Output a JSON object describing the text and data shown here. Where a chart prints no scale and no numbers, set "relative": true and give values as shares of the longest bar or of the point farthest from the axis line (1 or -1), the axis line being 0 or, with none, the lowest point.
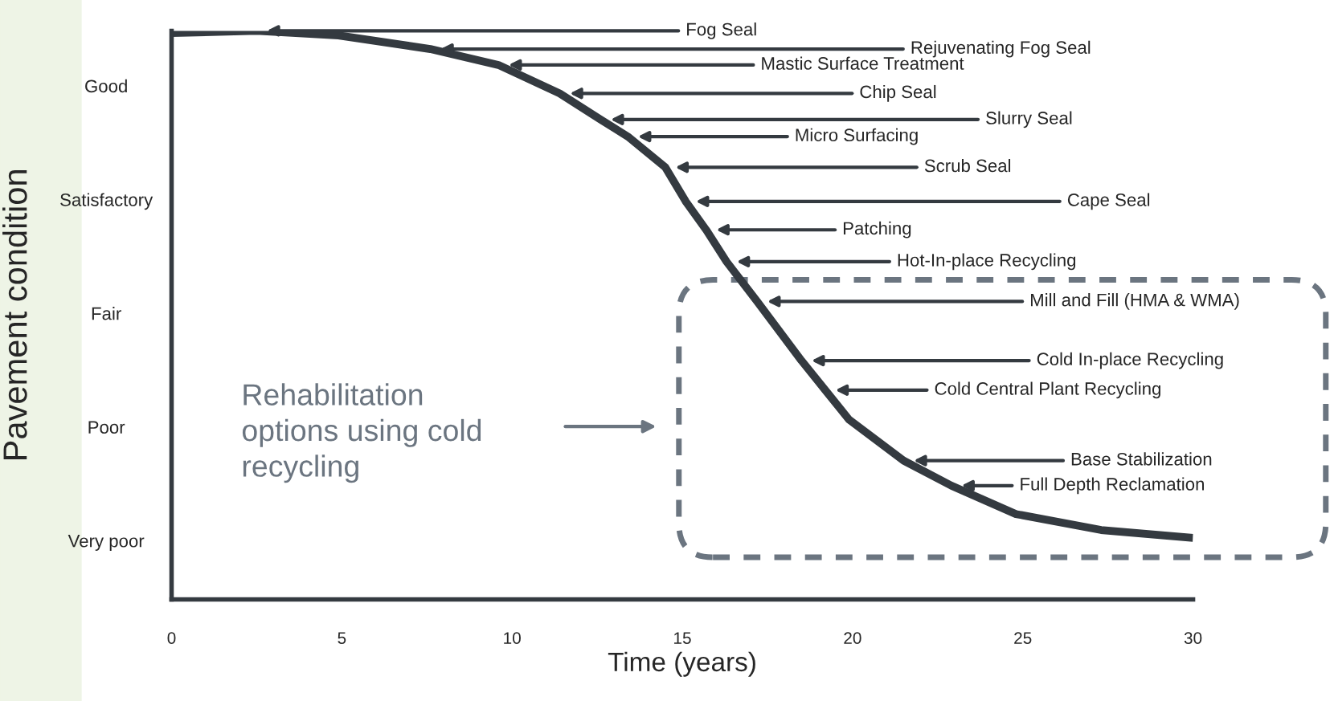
{
  "chart_data": {
    "type": "line",
    "xlabel": "Time (years)",
    "ylabel": "Pavement condition",
    "relative": true,
    "x": [
      0,
      2.5,
      4.9,
      7.6,
      9.6,
      11.4,
      12.6,
      13.4,
      14.5,
      15.1,
      15.7,
      16.3,
      17.2,
      18.5,
      19.2,
      19.9,
      21.5,
      22.9,
      24.8,
      27.3,
      30
    ],
    "series": [
      {
        "color": "#343a40",
        "values": [
          0.996,
          1,
          0.992,
          0.968,
          0.94,
          0.89,
          0.844,
          0.814,
          0.76,
          0.7,
          0.65,
          0.594,
          0.524,
          0.42,
          0.368,
          0.316,
          0.244,
          0.2,
          0.15,
          0.122,
          0.108
        ]
      }
    ],
    "xlim": [
      0,
      30
    ],
    "xticks": [
      0,
      5,
      10,
      15,
      20,
      25,
      30
    ],
    "grid": false,
    "annotations": [
      "Good",
      "Satisfactory",
      "Fair",
      "Poor",
      "Very poor",
      "Fog Seal",
      "Rejuvenating Fog Seal",
      "Mastic Surface Treatment",
      "Chip Seal",
      "Slurry Seal",
      "Micro Surfacing",
      "Scrub Seal",
      "Cape Seal",
      "Patching",
      "Hot-In-place Recycling",
      "Mill and Fill (HMA & WMA)",
      "Cold In-place Recycling",
      "Cold Central Plant Recycling",
      "Base Stabilization",
      "Full Depth Reclamation",
      "Rehabilitation\noptions using cold\nrecycling"
    ]
  }
}
